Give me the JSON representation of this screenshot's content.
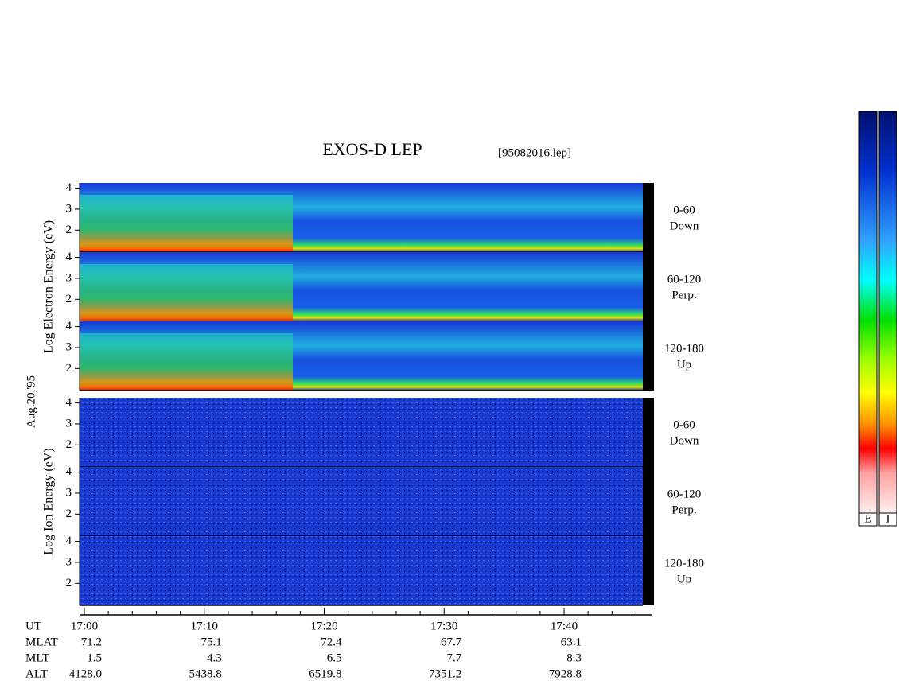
{
  "chart_data": {
    "type": "spectrogram",
    "title": "EXOS-D LEP",
    "file": "[95082016.lep]",
    "date": "Aug.20,'95",
    "groups": [
      {
        "ylabel": "Log  Electron  Energy (eV)",
        "panels": [
          {
            "label": "0-60",
            "sublabel": "Down"
          },
          {
            "label": "60-120",
            "sublabel": "Perp."
          },
          {
            "label": "120-180",
            "sublabel": "Up"
          }
        ]
      },
      {
        "ylabel": "Log  Ion  Energy (eV)",
        "panels": [
          {
            "label": "0-60",
            "sublabel": "Down"
          },
          {
            "label": "60-120",
            "sublabel": "Perp."
          },
          {
            "label": "120-180",
            "sublabel": "Up"
          }
        ]
      }
    ],
    "ylim": [
      0.95,
      4.25
    ],
    "yticks": [
      2,
      3,
      4
    ],
    "x_label": "UT",
    "x_labels": [
      "17:00",
      "17:10",
      "17:20",
      "17:30",
      "17:40"
    ],
    "orbit": [
      {
        "name": "MLAT",
        "values": [
          "71.2",
          "75.1",
          "72.4",
          "67.7",
          "63.1"
        ]
      },
      {
        "name": "MLT",
        "values": [
          "1.5",
          "4.3",
          "6.5",
          "7.7",
          "8.3"
        ]
      },
      {
        "name": "ALT",
        "values": [
          "4128.0",
          "5438.8",
          "6519.8",
          "7351.2",
          "7928.8"
        ]
      }
    ],
    "colorbars": [
      "E",
      "I"
    ]
  }
}
